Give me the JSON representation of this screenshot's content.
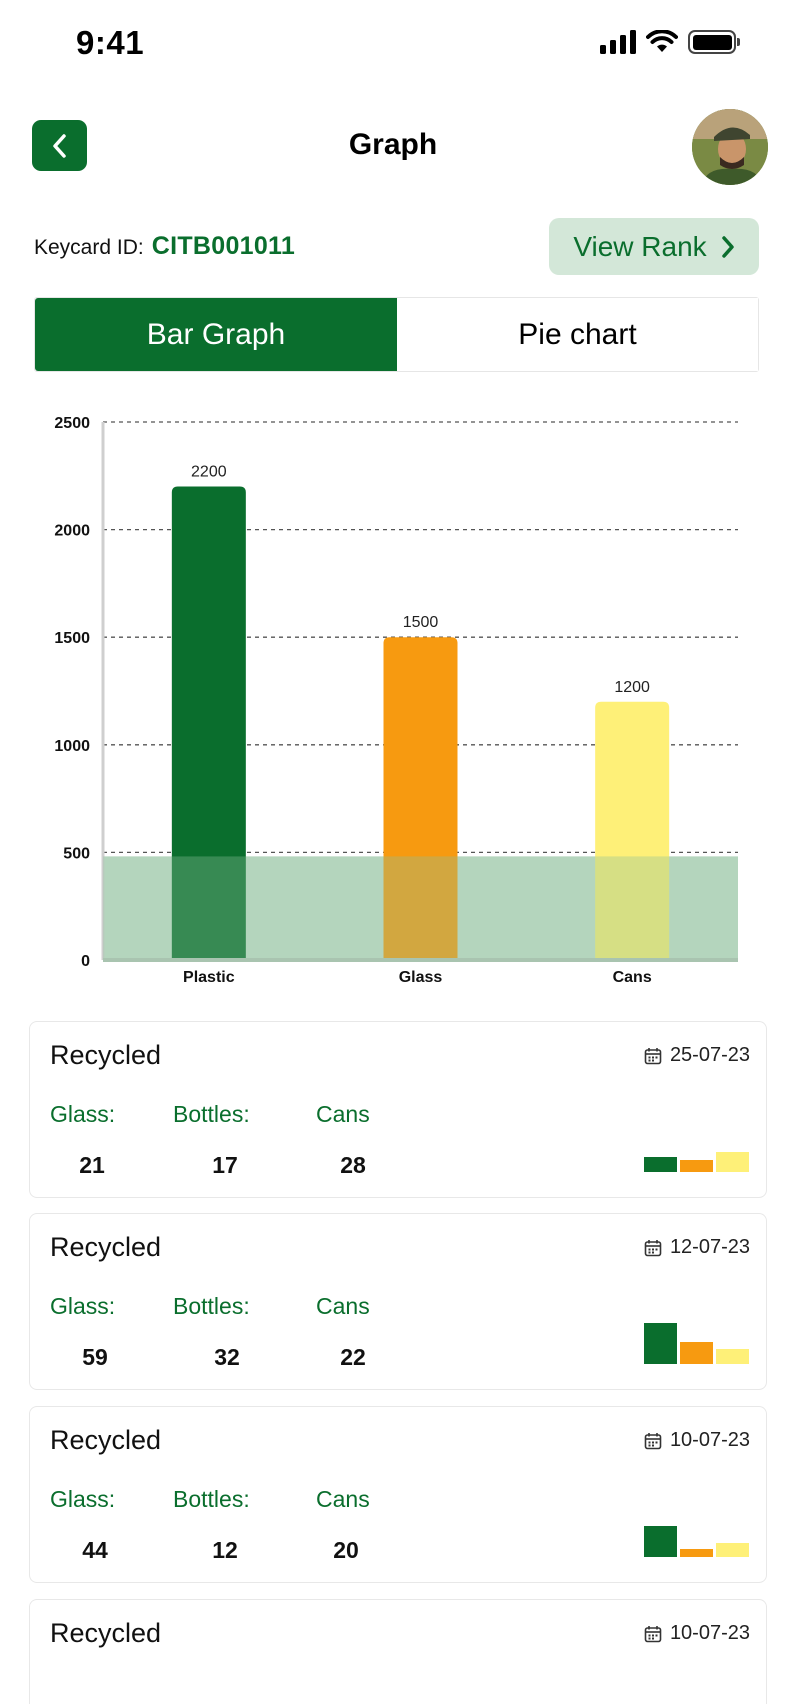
{
  "status_bar": {
    "time": "9:41"
  },
  "header": {
    "title": "Graph"
  },
  "keycard": {
    "label": "Keycard ID:",
    "value": "CITB001011"
  },
  "view_rank": {
    "label": "View Rank"
  },
  "tabs": [
    {
      "label": "Bar Graph",
      "active": true
    },
    {
      "label": "Pie chart",
      "active": false
    }
  ],
  "colors": {
    "brand_green": "#0a6e2d",
    "orange": "#f79a10",
    "yellow": "#fef078",
    "band": "#c6dfcc"
  },
  "chart_data": {
    "type": "bar",
    "categories": [
      "Plastic",
      "Glass",
      "Cans"
    ],
    "values": [
      2200,
      1500,
      1200
    ],
    "data_labels": [
      "2200",
      "1500",
      "1200"
    ],
    "bar_colors": [
      "#0a6e2d",
      "#f79a10",
      "#fef078"
    ],
    "y_ticks": [
      0,
      500,
      1000,
      1500,
      2000,
      2500
    ],
    "ylim": [
      0,
      2500
    ],
    "threshold_band": 500,
    "grid": "dashed horizontal",
    "title": "",
    "xlabel": "",
    "ylabel": ""
  },
  "cards": [
    {
      "title": "Recycled",
      "date": "25-07-23",
      "labels": [
        "Glass:",
        "Bottles:",
        "Cans"
      ],
      "values": [
        "21",
        "17",
        "28"
      ],
      "mini_bars": [
        21,
        17,
        28
      ]
    },
    {
      "title": "Recycled",
      "date": "12-07-23",
      "labels": [
        "Glass:",
        "Bottles:",
        "Cans"
      ],
      "values": [
        "59",
        "32",
        "22"
      ],
      "mini_bars": [
        59,
        32,
        22
      ]
    },
    {
      "title": "Recycled",
      "date": "10-07-23",
      "labels": [
        "Glass:",
        "Bottles:",
        "Cans"
      ],
      "values": [
        "44",
        "12",
        "20"
      ],
      "mini_bars": [
        44,
        12,
        20
      ]
    },
    {
      "title": "Recycled",
      "date": "10-07-23"
    }
  ]
}
